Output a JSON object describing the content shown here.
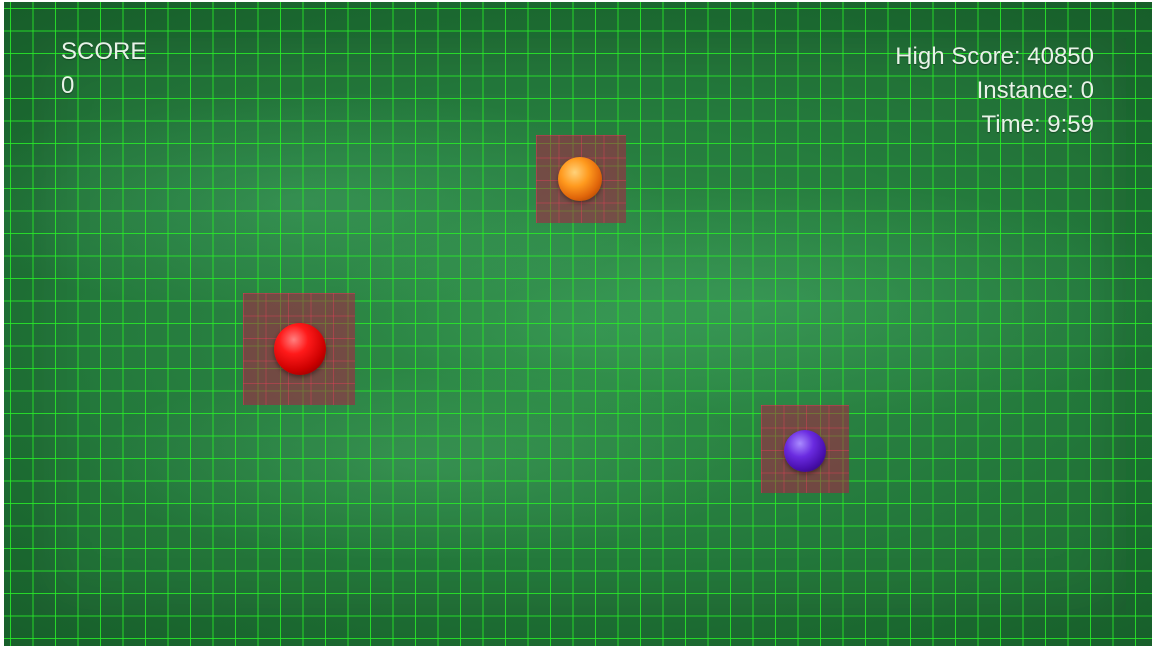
{
  "hud": {
    "score_label": "SCORE",
    "score_value": "0",
    "high_score": "High Score: 40850",
    "instance": "Instance: 0",
    "time": "Time: 9:59"
  },
  "balls": [
    {
      "name": "orange-ball",
      "color": "#ff8c1a"
    },
    {
      "name": "red-ball",
      "color": "#ee0000"
    },
    {
      "name": "purple-ball",
      "color": "#5a1fcc"
    }
  ],
  "colors": {
    "grid_line": "#28eb28",
    "background": "#1f7236",
    "target_tile": "#af1e46",
    "hud_text": "#e8f3e8"
  }
}
